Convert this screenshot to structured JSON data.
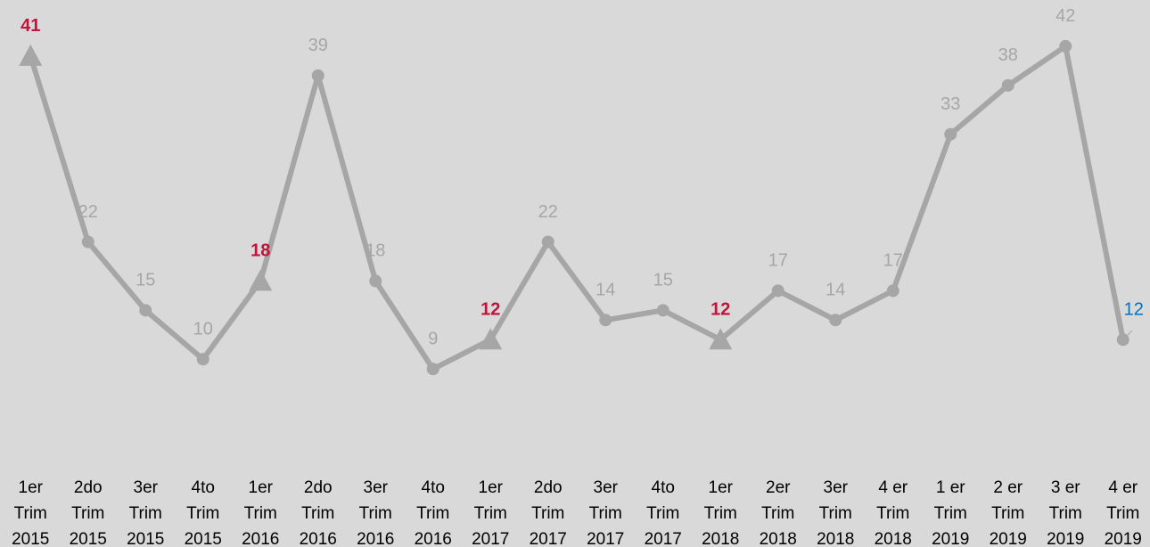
{
  "chart_data": {
    "type": "line",
    "categories": [
      [
        "1er",
        "Trim",
        "2015"
      ],
      [
        "2do",
        "Trim",
        "2015"
      ],
      [
        "3er",
        "Trim",
        "2015"
      ],
      [
        "4to",
        "Trim",
        "2015"
      ],
      [
        "1er",
        "Trim",
        "2016"
      ],
      [
        "2do",
        "Trim",
        "2016"
      ],
      [
        "3er",
        "Trim",
        "2016"
      ],
      [
        "4to",
        "Trim",
        "2016"
      ],
      [
        "1er",
        "Trim",
        "2017"
      ],
      [
        "2do",
        "Trim",
        "2017"
      ],
      [
        "3er",
        "Trim",
        "2017"
      ],
      [
        "4to",
        "Trim",
        "2017"
      ],
      [
        "1er",
        "Trim",
        "2018"
      ],
      [
        "2er",
        "Trim",
        "2018"
      ],
      [
        "3er",
        "Trim",
        "2018"
      ],
      [
        "4 er",
        "Trim",
        "2018"
      ],
      [
        "1 er",
        "Trim",
        "2019"
      ],
      [
        "2 er",
        "Trim",
        "2019"
      ],
      [
        "3 er",
        "Trim",
        "2019"
      ],
      [
        "4 er",
        "Trim",
        "2019"
      ]
    ],
    "series": [
      {
        "color": "#a6a6a6",
        "values": [
          41,
          22,
          15,
          10,
          18,
          39,
          18,
          9,
          12,
          22,
          14,
          15,
          12,
          17,
          14,
          17,
          33,
          38,
          42,
          12
        ],
        "markers": [
          "triangle",
          "circle",
          "circle",
          "circle",
          "triangle",
          "circle",
          "circle",
          "circle",
          "triangle",
          "circle",
          "circle",
          "circle",
          "triangle",
          "circle",
          "circle",
          "circle",
          "circle",
          "circle",
          "circle",
          "circle"
        ],
        "label_colors": [
          "#c0143c",
          "#a6a6a6",
          "#a6a6a6",
          "#a6a6a6",
          "#c0143c",
          "#a6a6a6",
          "#a6a6a6",
          "#a6a6a6",
          "#c0143c",
          "#a6a6a6",
          "#a6a6a6",
          "#a6a6a6",
          "#c0143c",
          "#a6a6a6",
          "#a6a6a6",
          "#a6a6a6",
          "#a6a6a6",
          "#a6a6a6",
          "#a6a6a6",
          "#0070c0"
        ]
      }
    ],
    "ylim": [
      0,
      45
    ],
    "grid": false
  }
}
